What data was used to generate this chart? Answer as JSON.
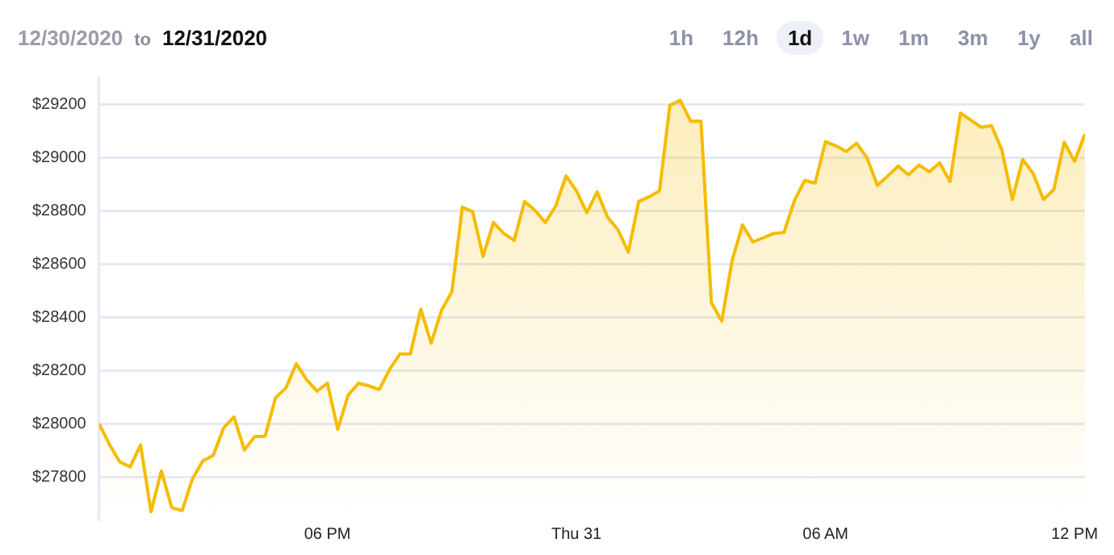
{
  "chart_data": {
    "type": "area",
    "annotations": [
      "12/30/2020",
      "to",
      "12/31/2020",
      "1h",
      "12h",
      "1d",
      "1w",
      "1m",
      "3m",
      "1y",
      "all"
    ],
    "x": [
      "2020-12-30T12:30",
      "2020-12-30T12:45",
      "2020-12-30T13:00",
      "2020-12-30T13:15",
      "2020-12-30T13:30",
      "2020-12-30T13:45",
      "2020-12-30T14:00",
      "2020-12-30T14:15",
      "2020-12-30T14:30",
      "2020-12-30T14:45",
      "2020-12-30T15:00",
      "2020-12-30T15:15",
      "2020-12-30T15:30",
      "2020-12-30T15:45",
      "2020-12-30T16:00",
      "2020-12-30T16:15",
      "2020-12-30T16:30",
      "2020-12-30T16:45",
      "2020-12-30T17:00",
      "2020-12-30T17:15",
      "2020-12-30T17:30",
      "2020-12-30T17:45",
      "2020-12-30T18:00",
      "2020-12-30T18:15",
      "2020-12-30T18:30",
      "2020-12-30T18:45",
      "2020-12-30T19:00",
      "2020-12-30T19:15",
      "2020-12-30T19:30",
      "2020-12-30T19:45",
      "2020-12-30T20:00",
      "2020-12-30T20:15",
      "2020-12-30T20:30",
      "2020-12-30T20:45",
      "2020-12-30T21:00",
      "2020-12-30T21:15",
      "2020-12-30T21:30",
      "2020-12-30T21:45",
      "2020-12-30T22:00",
      "2020-12-30T22:15",
      "2020-12-30T22:30",
      "2020-12-30T22:45",
      "2020-12-30T23:00",
      "2020-12-30T23:15",
      "2020-12-30T23:30",
      "2020-12-30T23:45",
      "2020-12-31T00:00",
      "2020-12-31T00:15",
      "2020-12-31T00:30",
      "2020-12-31T00:45",
      "2020-12-31T01:00",
      "2020-12-31T01:15",
      "2020-12-31T01:30",
      "2020-12-31T01:45",
      "2020-12-31T02:00",
      "2020-12-31T02:15",
      "2020-12-31T02:30",
      "2020-12-31T02:45",
      "2020-12-31T03:00",
      "2020-12-31T03:15",
      "2020-12-31T03:30",
      "2020-12-31T03:45",
      "2020-12-31T04:00",
      "2020-12-31T04:15",
      "2020-12-31T04:30",
      "2020-12-31T04:45",
      "2020-12-31T05:00",
      "2020-12-31T05:15",
      "2020-12-31T05:30",
      "2020-12-31T05:45",
      "2020-12-31T06:00",
      "2020-12-31T06:15",
      "2020-12-31T06:30",
      "2020-12-31T06:45",
      "2020-12-31T07:00",
      "2020-12-31T07:15",
      "2020-12-31T07:30",
      "2020-12-31T07:45",
      "2020-12-31T08:00",
      "2020-12-31T08:15",
      "2020-12-31T08:30",
      "2020-12-31T08:45",
      "2020-12-31T09:00",
      "2020-12-31T09:15",
      "2020-12-31T09:30",
      "2020-12-31T09:45",
      "2020-12-31T10:00",
      "2020-12-31T10:15",
      "2020-12-31T10:30",
      "2020-12-31T10:45",
      "2020-12-31T11:00",
      "2020-12-31T11:15",
      "2020-12-31T11:30",
      "2020-12-31T11:45",
      "2020-12-31T12:00",
      "2020-12-31T12:15"
    ],
    "series": [
      {
        "color": "#f5bc00",
        "values": [
          28000,
          27922,
          27856,
          27838,
          27920,
          27669,
          27822,
          27685,
          27673,
          27793,
          27860,
          27881,
          27984,
          28025,
          27901,
          27951,
          27953,
          28097,
          28134,
          28225,
          28165,
          28122,
          28152,
          27979,
          28107,
          28152,
          28142,
          28128,
          28204,
          28262,
          28262,
          28430,
          28302,
          28426,
          28496,
          28813,
          28796,
          28628,
          28755,
          28714,
          28688,
          28834,
          28801,
          28755,
          28817,
          28930,
          28874,
          28792,
          28870,
          28775,
          28728,
          28644,
          28834,
          28852,
          28874,
          29195,
          29214,
          29136,
          29136,
          28455,
          28385,
          28612,
          28746,
          28682,
          28698,
          28714,
          28718,
          28837,
          28913,
          28903,
          29059,
          29043,
          29022,
          29053,
          28998,
          28895,
          28930,
          28967,
          28934,
          28971,
          28946,
          28979,
          28909,
          29166,
          29140,
          29113,
          29119,
          29027,
          28842,
          28992,
          28940,
          28842,
          28879,
          29057,
          28985,
          29088
        ]
      }
    ],
    "xlim": [
      "2020-12-30T12:30",
      "2020-12-31T12:15"
    ],
    "xticks": [
      {
        "value": "2020-12-30T18:00",
        "label": "06 PM"
      },
      {
        "value": "2020-12-31T00:00",
        "label": "Thu 31"
      },
      {
        "value": "2020-12-31T06:00",
        "label": "06 AM"
      },
      {
        "value": "2020-12-31T12:00",
        "label": "12 PM"
      }
    ],
    "ylim": [
      27640,
      29300
    ],
    "yticks": [
      {
        "value": 27800,
        "label": "$27800"
      },
      {
        "value": 28000,
        "label": "$28000"
      },
      {
        "value": 28200,
        "label": "$28200"
      },
      {
        "value": 28400,
        "label": "$28400"
      },
      {
        "value": 28600,
        "label": "$28600"
      },
      {
        "value": 28800,
        "label": "$28800"
      },
      {
        "value": 29000,
        "label": "$29000"
      },
      {
        "value": 29200,
        "label": "$29200"
      }
    ],
    "grid": "y",
    "legend": false,
    "marker": "none",
    "line_style": "solid"
  }
}
